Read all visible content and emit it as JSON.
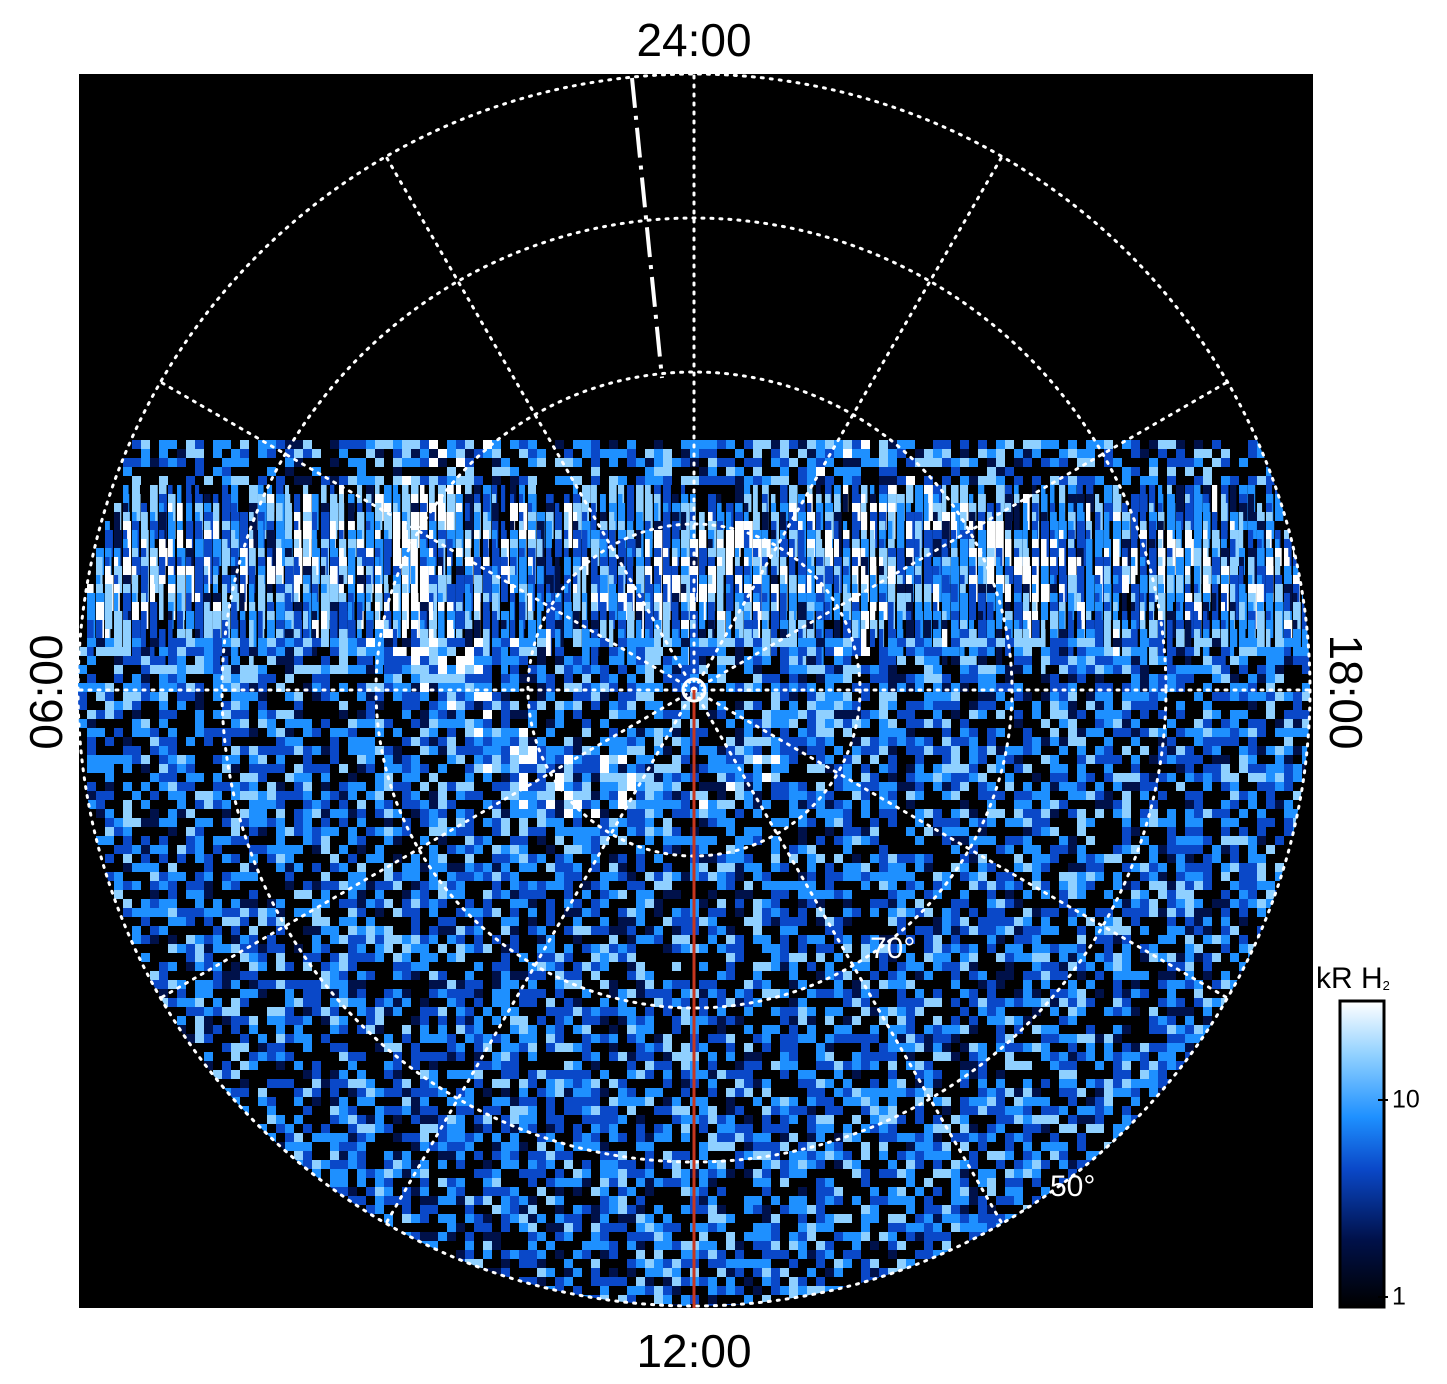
{
  "figure": {
    "local_time_labels": {
      "top": "24:00",
      "bottom": "12:00",
      "left": "06:00",
      "right": "18:00"
    },
    "latitude_labels": [
      "70°",
      "50°"
    ],
    "colorbar": {
      "unit": "kR H",
      "unit_subscript": "2",
      "tick_labels": [
        "10",
        "1"
      ],
      "scale": "log",
      "range": [
        1,
        25
      ],
      "colors": [
        "#000000",
        "#00114a",
        "#0a48c8",
        "#1e90ff",
        "#8fd0ff",
        "#ffffff"
      ]
    },
    "colors": {
      "background": "#000000",
      "grid": "#ffffff",
      "noon_meridian": "#c8361e"
    }
  }
}
